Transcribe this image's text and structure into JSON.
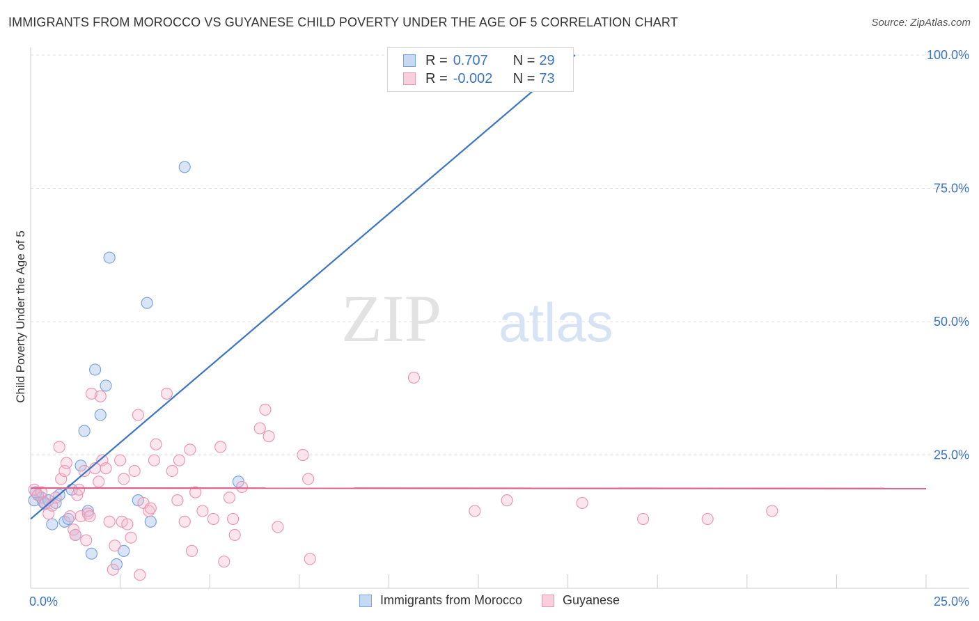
{
  "title": "IMMIGRANTS FROM MOROCCO VS GUYANESE CHILD POVERTY UNDER THE AGE OF 5 CORRELATION CHART",
  "source": "Source: ZipAtlas.com",
  "watermark": {
    "zip": "ZIP",
    "atlas": "atlas"
  },
  "colors": {
    "blue": "#3b73c4",
    "blue_fill": "#aac6ee",
    "pink": "#e0608a",
    "pink_fill": "#f4b8cb",
    "grid": "#dddddd",
    "axis_text": "#3b73c4"
  },
  "legend": {
    "rows": [
      {
        "r_label": "R =",
        "r_value": "0.707",
        "n_label": "N =",
        "n_value": "29"
      },
      {
        "r_label": "R =",
        "r_value": "-0.002",
        "n_label": "N =",
        "n_value": "73"
      }
    ]
  },
  "bottom_legend": {
    "series1": "Immigrants from Morocco",
    "series2": "Guyanese"
  },
  "chart_data": {
    "type": "scatter",
    "title": "IMMIGRANTS FROM MOROCCO VS GUYANESE CHILD POVERTY UNDER THE AGE OF 5 CORRELATION CHART",
    "xlabel": "",
    "ylabel": "Child Poverty Under the Age of 5",
    "xlim": [
      0,
      25
    ],
    "ylim": [
      0,
      100
    ],
    "x_tick_labels": [
      "0.0%",
      "25.0%"
    ],
    "y_ticks": [
      25,
      50,
      75,
      100
    ],
    "y_tick_labels": [
      "25.0%",
      "50.0%",
      "75.0%",
      "100.0%"
    ],
    "grid": true,
    "series": [
      {
        "name": "Immigrants from Morocco",
        "color": "#3b73c4",
        "r": 0.707,
        "n": 29,
        "trend": {
          "x": [
            0,
            15.2
          ],
          "y": [
            13,
            100
          ]
        },
        "points": [
          [
            0.1,
            16.5
          ],
          [
            0.2,
            17.5
          ],
          [
            0.3,
            17.0
          ],
          [
            0.35,
            16.2
          ],
          [
            0.4,
            15.8
          ],
          [
            0.5,
            16.5
          ],
          [
            0.6,
            12.0
          ],
          [
            0.7,
            16.0
          ],
          [
            0.8,
            17.5
          ],
          [
            0.95,
            12.5
          ],
          [
            1.05,
            13.0
          ],
          [
            1.15,
            18.5
          ],
          [
            1.25,
            10.0
          ],
          [
            1.4,
            23.0
          ],
          [
            1.5,
            29.5
          ],
          [
            1.6,
            14.5
          ],
          [
            1.7,
            6.5
          ],
          [
            1.8,
            41.0
          ],
          [
            1.95,
            32.5
          ],
          [
            2.1,
            38.0
          ],
          [
            2.2,
            62.0
          ],
          [
            2.4,
            4.5
          ],
          [
            2.6,
            7.0
          ],
          [
            3.0,
            16.5
          ],
          [
            3.25,
            53.5
          ],
          [
            3.35,
            12.5
          ],
          [
            4.3,
            79.0
          ],
          [
            5.8,
            20.0
          ],
          [
            0.15,
            18.0
          ]
        ]
      },
      {
        "name": "Guyanese",
        "color": "#e0608a",
        "r": -0.002,
        "n": 73,
        "trend": {
          "x": [
            0,
            25
          ],
          "y": [
            18.8,
            18.7
          ]
        },
        "points": [
          [
            0.1,
            18.5
          ],
          [
            0.2,
            17.5
          ],
          [
            0.3,
            18.0
          ],
          [
            0.4,
            16.0
          ],
          [
            0.5,
            14.0
          ],
          [
            0.6,
            15.5
          ],
          [
            0.7,
            17.0
          ],
          [
            0.8,
            26.5
          ],
          [
            0.85,
            20.5
          ],
          [
            0.95,
            22.0
          ],
          [
            1.0,
            23.5
          ],
          [
            1.1,
            13.5
          ],
          [
            1.2,
            11.0
          ],
          [
            1.25,
            10.0
          ],
          [
            1.3,
            17.5
          ],
          [
            1.35,
            18.5
          ],
          [
            1.4,
            13.5
          ],
          [
            1.5,
            22.0
          ],
          [
            1.55,
            9.0
          ],
          [
            1.6,
            14.0
          ],
          [
            1.65,
            13.5
          ],
          [
            1.7,
            36.5
          ],
          [
            1.8,
            22.5
          ],
          [
            1.9,
            20.0
          ],
          [
            1.95,
            36.0
          ],
          [
            2.0,
            24.0
          ],
          [
            2.1,
            22.5
          ],
          [
            2.2,
            12.5
          ],
          [
            2.3,
            3.5
          ],
          [
            2.35,
            8.0
          ],
          [
            2.5,
            24.0
          ],
          [
            2.55,
            12.5
          ],
          [
            2.6,
            20.5
          ],
          [
            2.7,
            12.0
          ],
          [
            2.8,
            9.5
          ],
          [
            2.9,
            22.0
          ],
          [
            3.0,
            32.5
          ],
          [
            3.05,
            2.5
          ],
          [
            3.15,
            16.0
          ],
          [
            3.3,
            14.5
          ],
          [
            3.35,
            15.0
          ],
          [
            3.45,
            24.0
          ],
          [
            3.5,
            27.0
          ],
          [
            3.8,
            36.5
          ],
          [
            3.95,
            22.0
          ],
          [
            4.1,
            16.5
          ],
          [
            4.15,
            24.0
          ],
          [
            4.3,
            12.5
          ],
          [
            4.45,
            26.0
          ],
          [
            4.5,
            7.0
          ],
          [
            4.6,
            18.0
          ],
          [
            4.8,
            14.5
          ],
          [
            5.1,
            13.0
          ],
          [
            5.3,
            26.5
          ],
          [
            5.4,
            5.0
          ],
          [
            5.55,
            17.0
          ],
          [
            5.65,
            13.0
          ],
          [
            5.7,
            10.0
          ],
          [
            5.9,
            19.0
          ],
          [
            6.4,
            30.0
          ],
          [
            6.55,
            33.5
          ],
          [
            6.65,
            28.5
          ],
          [
            6.9,
            11.5
          ],
          [
            7.6,
            25.0
          ],
          [
            7.75,
            20.5
          ],
          [
            7.8,
            5.5
          ],
          [
            10.7,
            39.5
          ],
          [
            12.4,
            14.5
          ],
          [
            13.3,
            16.5
          ],
          [
            15.4,
            16.0
          ],
          [
            17.1,
            13.0
          ],
          [
            18.9,
            13.0
          ],
          [
            20.7,
            14.5
          ]
        ]
      }
    ]
  }
}
